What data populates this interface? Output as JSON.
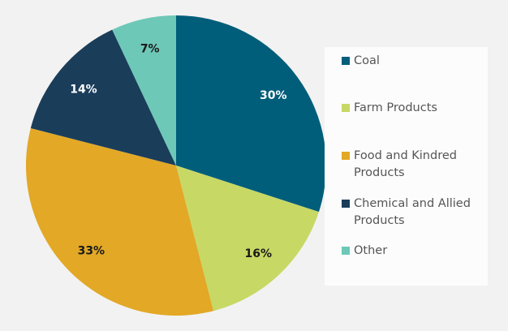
{
  "chart_data": {
    "type": "pie",
    "categories": [
      "Coal",
      "Farm Products",
      "Food and Kindred Products",
      "Chemical and Allied Products",
      "Other"
    ],
    "values": [
      30,
      16,
      33,
      14,
      7
    ],
    "labels": [
      "30%",
      "16%",
      "33%",
      "14%",
      "7%"
    ],
    "colors": [
      "#005e7a",
      "#c8d865",
      "#e2a826",
      "#1a3d5a",
      "#6dc8b8"
    ],
    "label_colors": [
      "#ffffff",
      "#1a1a1a",
      "#1a1a1a",
      "#ffffff",
      "#1a1a1a"
    ],
    "start_angle": "top, clockwise",
    "legend": "right"
  }
}
